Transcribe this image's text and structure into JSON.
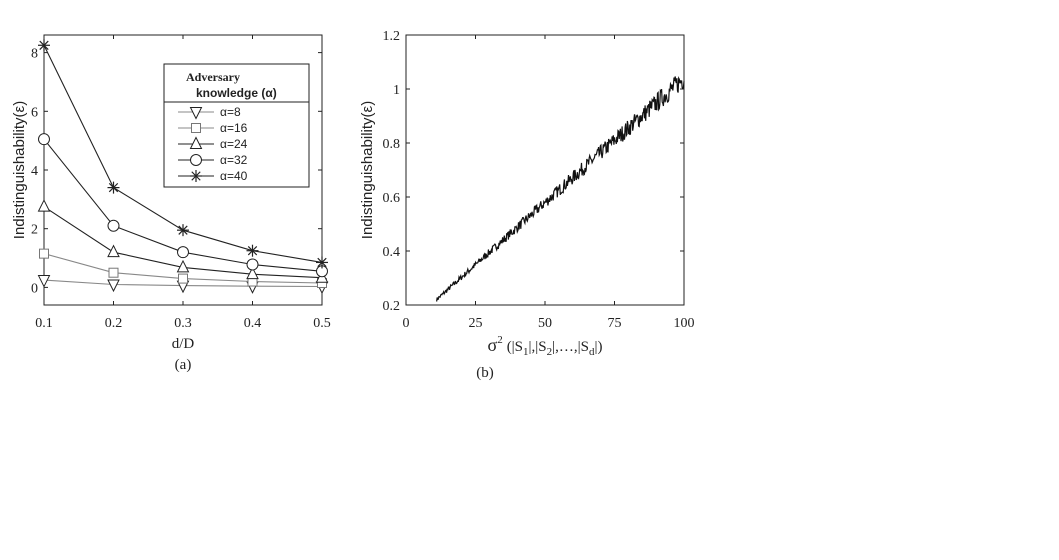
{
  "chart_data": [
    {
      "type": "line",
      "panel_label": "(a)",
      "xlabel": "d/D",
      "ylabel": "Indistinguishability(ε)",
      "x": [
        0.1,
        0.2,
        0.3,
        0.4,
        0.5
      ],
      "xticks": [
        "0.1",
        "0.2",
        "0.3",
        "0.4",
        "0.5"
      ],
      "yticks": [
        "0",
        "2",
        "4",
        "6",
        "8"
      ],
      "xlim": [
        0.1,
        0.5
      ],
      "ylim": [
        -0.6,
        8.6
      ],
      "legend": {
        "title_line1": "Adversary",
        "title_line2": "knowledge (α)",
        "placement": "top-right"
      },
      "series": [
        {
          "name": "α=8",
          "marker": "triangle-down",
          "values": [
            0.25,
            0.1,
            0.06,
            0.04,
            0.03
          ]
        },
        {
          "name": "α=16",
          "marker": "square",
          "values": [
            1.15,
            0.5,
            0.3,
            0.2,
            0.15
          ]
        },
        {
          "name": "α=24",
          "marker": "triangle-up",
          "values": [
            2.75,
            1.2,
            0.68,
            0.45,
            0.33
          ]
        },
        {
          "name": "α=32",
          "marker": "circle",
          "values": [
            5.05,
            2.1,
            1.2,
            0.78,
            0.55
          ]
        },
        {
          "name": "α=40",
          "marker": "asterisk",
          "values": [
            8.25,
            3.4,
            1.95,
            1.25,
            0.85
          ]
        }
      ],
      "grid": false
    },
    {
      "type": "line",
      "panel_label": "(b)",
      "xlabel_sigma": "σ",
      "xlabel_sup": "2",
      "xlabel_rest": "(|S",
      "xlabel_sub1": "1",
      "xlabel_mid1": "|,|S",
      "xlabel_sub2": "2",
      "xlabel_mid2": "|,…,|S",
      "xlabel_sub3": "d",
      "xlabel_end": "|)",
      "ylabel": "Indistinguishability(ε)",
      "xticks": [
        "0",
        "25",
        "50",
        "75",
        "100"
      ],
      "yticks": [
        "0.2",
        "0.4",
        "0.6",
        "0.8",
        "1",
        "1.2"
      ],
      "xlim": [
        0,
        100
      ],
      "ylim": [
        0.2,
        1.2
      ],
      "series": [
        {
          "x_start": 11,
          "x_end": 100,
          "y_start": 0.22,
          "y_end": 1.04,
          "noise": 0.018
        }
      ],
      "grid": false
    }
  ]
}
